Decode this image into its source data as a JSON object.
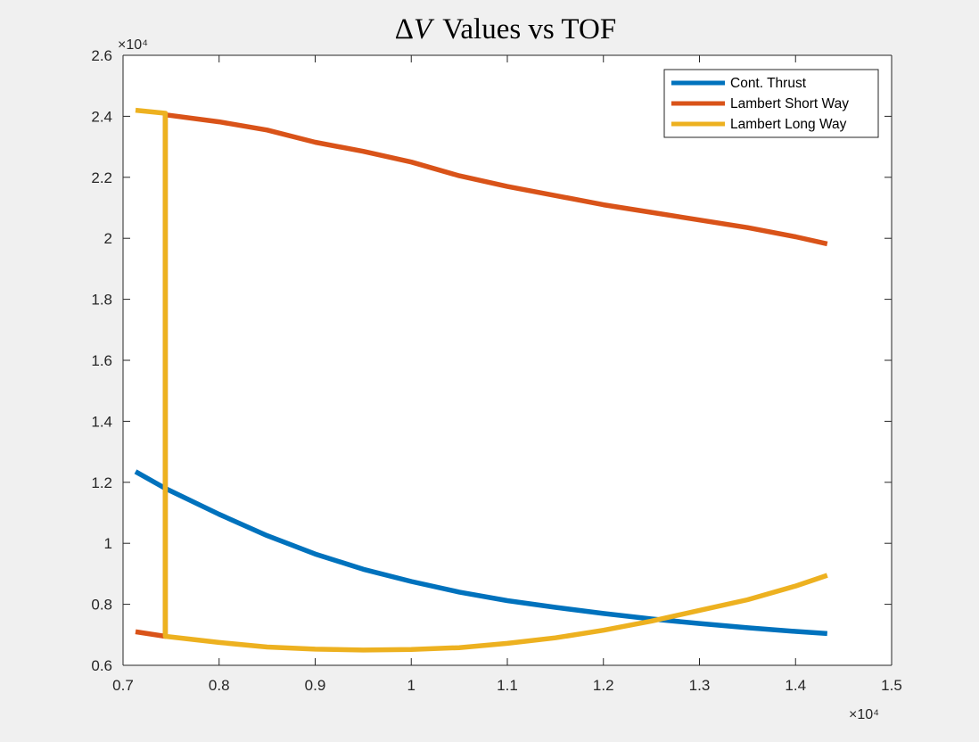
{
  "chart_data": {
    "type": "line",
    "title": "ΔV Values vs TOF",
    "title_parts": {
      "delta": "Δ",
      "var": "V",
      "rest": "Values vs TOF"
    },
    "xlabel": "",
    "ylabel": "",
    "xlim": [
      7000,
      15000
    ],
    "ylim": [
      6000,
      26000
    ],
    "x_exponent_label": "×10⁴",
    "y_exponent_label": "×10⁴",
    "x_ticks": [
      7000,
      8000,
      9000,
      10000,
      11000,
      12000,
      13000,
      14000,
      15000
    ],
    "x_tick_labels": [
      "0.7",
      "0.8",
      "0.9",
      "1",
      "1.1",
      "1.2",
      "1.3",
      "1.4",
      "1.5"
    ],
    "y_ticks": [
      6000,
      8000,
      10000,
      12000,
      14000,
      16000,
      18000,
      20000,
      22000,
      24000,
      26000
    ],
    "y_tick_labels": [
      "0.6",
      "0.8",
      "1",
      "1.2",
      "1.4",
      "1.6",
      "1.8",
      "2",
      "2.2",
      "2.4",
      "2.6"
    ],
    "grid": false,
    "legend_position": "top-right",
    "series": [
      {
        "name": "Cont. Thrust",
        "color": "#0072bd",
        "x": [
          7130,
          7440,
          8000,
          8500,
          9000,
          9500,
          10000,
          10500,
          11000,
          11500,
          12000,
          12500,
          13000,
          13500,
          14000,
          14330
        ],
        "y": [
          12350,
          11800,
          10950,
          10250,
          9650,
          9150,
          8750,
          8400,
          8120,
          7900,
          7700,
          7520,
          7370,
          7230,
          7110,
          7040
        ]
      },
      {
        "name": "Lambert Short Way",
        "color": "#d95319",
        "x": [
          7130,
          7440,
          7440,
          8000,
          8500,
          9000,
          9500,
          10000,
          10500,
          11000,
          11500,
          12000,
          12500,
          13000,
          13500,
          14000,
          14330
        ],
        "y": [
          7100,
          6950,
          24050,
          23820,
          23550,
          23150,
          22850,
          22500,
          22050,
          21700,
          21400,
          21100,
          20850,
          20600,
          20350,
          20050,
          19820
        ]
      },
      {
        "name": "Lambert Long Way",
        "color": "#edb120",
        "x": [
          7130,
          7440,
          7440,
          8000,
          8500,
          9000,
          9500,
          10000,
          10500,
          11000,
          11500,
          12000,
          12500,
          13000,
          13500,
          14000,
          14330
        ],
        "y": [
          24200,
          24100,
          6950,
          6750,
          6600,
          6530,
          6500,
          6520,
          6580,
          6720,
          6900,
          7150,
          7450,
          7800,
          8150,
          8600,
          8950
        ]
      }
    ]
  }
}
